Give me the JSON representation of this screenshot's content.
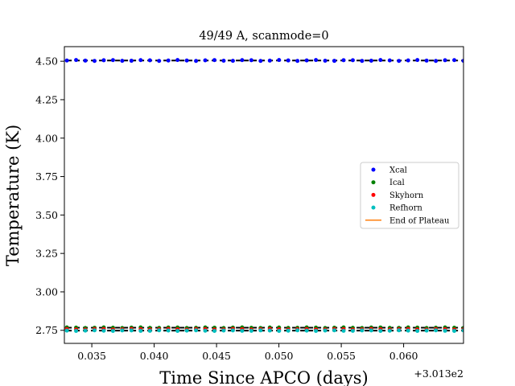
{
  "chart_data": {
    "type": "scatter",
    "title": "49/49 A, scanmode=0",
    "xlabel": "Time Since APCO (days)",
    "ylabel": "Temperature (K)",
    "x_offset_label": "+3.013e2",
    "xlim": [
      0.0328,
      0.0648
    ],
    "ylim": [
      2.665,
      4.595
    ],
    "x_ticks": [
      0.035,
      0.04,
      0.045,
      0.05,
      0.055,
      0.06
    ],
    "x_tick_labels": [
      "0.035",
      "0.040",
      "0.045",
      "0.050",
      "0.055",
      "0.060"
    ],
    "y_ticks": [
      2.75,
      3.0,
      3.25,
      3.5,
      3.75,
      4.0,
      4.25,
      4.5
    ],
    "y_tick_labels": [
      "2.75",
      "3.00",
      "3.25",
      "3.50",
      "3.75",
      "4.00",
      "4.25",
      "4.50"
    ],
    "grid": false,
    "legend_position": "center-right",
    "series": [
      {
        "name": "Xcal",
        "color": "#0000ff",
        "marker": "dot",
        "x_range": [
          0.033,
          0.0648
        ],
        "y_center": 4.505,
        "y_jitter": 0.003,
        "n_points": 44
      },
      {
        "name": "Ical",
        "color": "#008000",
        "marker": "dot",
        "x_range": [
          0.033,
          0.0648
        ],
        "y_center": 2.767,
        "y_jitter": 0.002,
        "n_points": 44
      },
      {
        "name": "Skyhorn",
        "color": "#ff0000",
        "marker": "dot",
        "x_range": [
          0.033,
          0.0648
        ],
        "y_center": 2.757,
        "y_jitter": 0.002,
        "n_points": 44
      },
      {
        "name": "Refhorn",
        "color": "#00bfbf",
        "marker": "dot",
        "x_range": [
          0.033,
          0.0648
        ],
        "y_center": 2.748,
        "y_jitter": 0.002,
        "n_points": 44
      },
      {
        "name": "End of Plateau",
        "color": "#ff7f0e",
        "marker": "line",
        "values": []
      }
    ],
    "reference_lines": [
      {
        "style": "dashed",
        "color": "#000000",
        "y": 4.505,
        "x_range": [
          0.033,
          0.0648
        ]
      },
      {
        "style": "dashed",
        "color": "#000000",
        "y": 2.767,
        "x_range": [
          0.033,
          0.0648
        ]
      },
      {
        "style": "dashed",
        "color": "#000000",
        "y": 2.748,
        "x_range": [
          0.033,
          0.0648
        ]
      }
    ]
  }
}
